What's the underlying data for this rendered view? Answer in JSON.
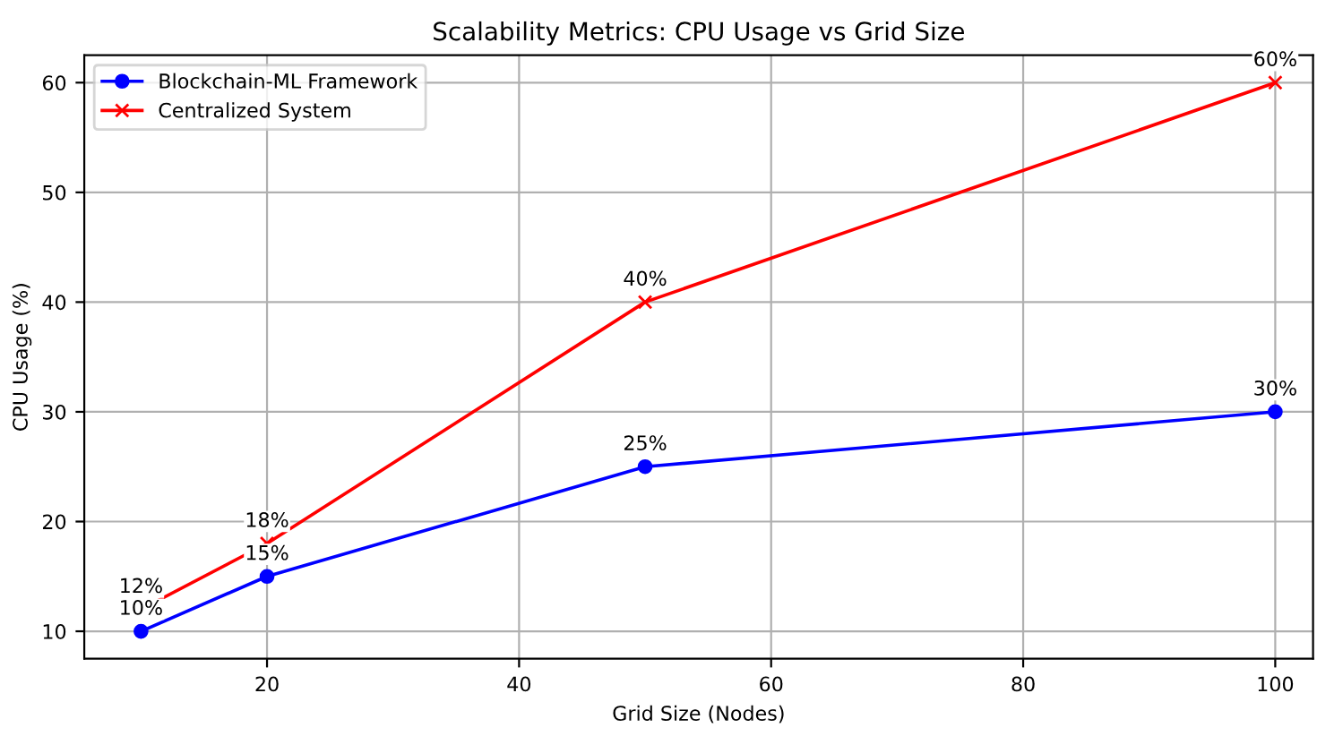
{
  "chart_data": {
    "type": "line",
    "title": "Scalability Metrics: CPU Usage vs Grid Size",
    "xlabel": "Grid Size (Nodes)",
    "ylabel": "CPU Usage (%)",
    "x": [
      10,
      20,
      50,
      100
    ],
    "series": [
      {
        "name": "Blockchain-ML Framework",
        "color": "#0000ff",
        "marker": "circle",
        "values": [
          10,
          15,
          25,
          30
        ],
        "value_labels": [
          "10%",
          "15%",
          "25%",
          "30%"
        ]
      },
      {
        "name": "Centralized System",
        "color": "#ff0000",
        "marker": "cross",
        "values": [
          12,
          18,
          40,
          60
        ],
        "value_labels": [
          "12%",
          "18%",
          "40%",
          "60%"
        ]
      }
    ],
    "xlim": [
      5.5,
      103
    ],
    "ylim": [
      7.5,
      62.5
    ],
    "xticks": [
      20,
      40,
      60,
      80,
      100
    ],
    "yticks": [
      10,
      20,
      30,
      40,
      50,
      60
    ],
    "grid": true,
    "legend": "top left",
    "line_style": "solid"
  }
}
